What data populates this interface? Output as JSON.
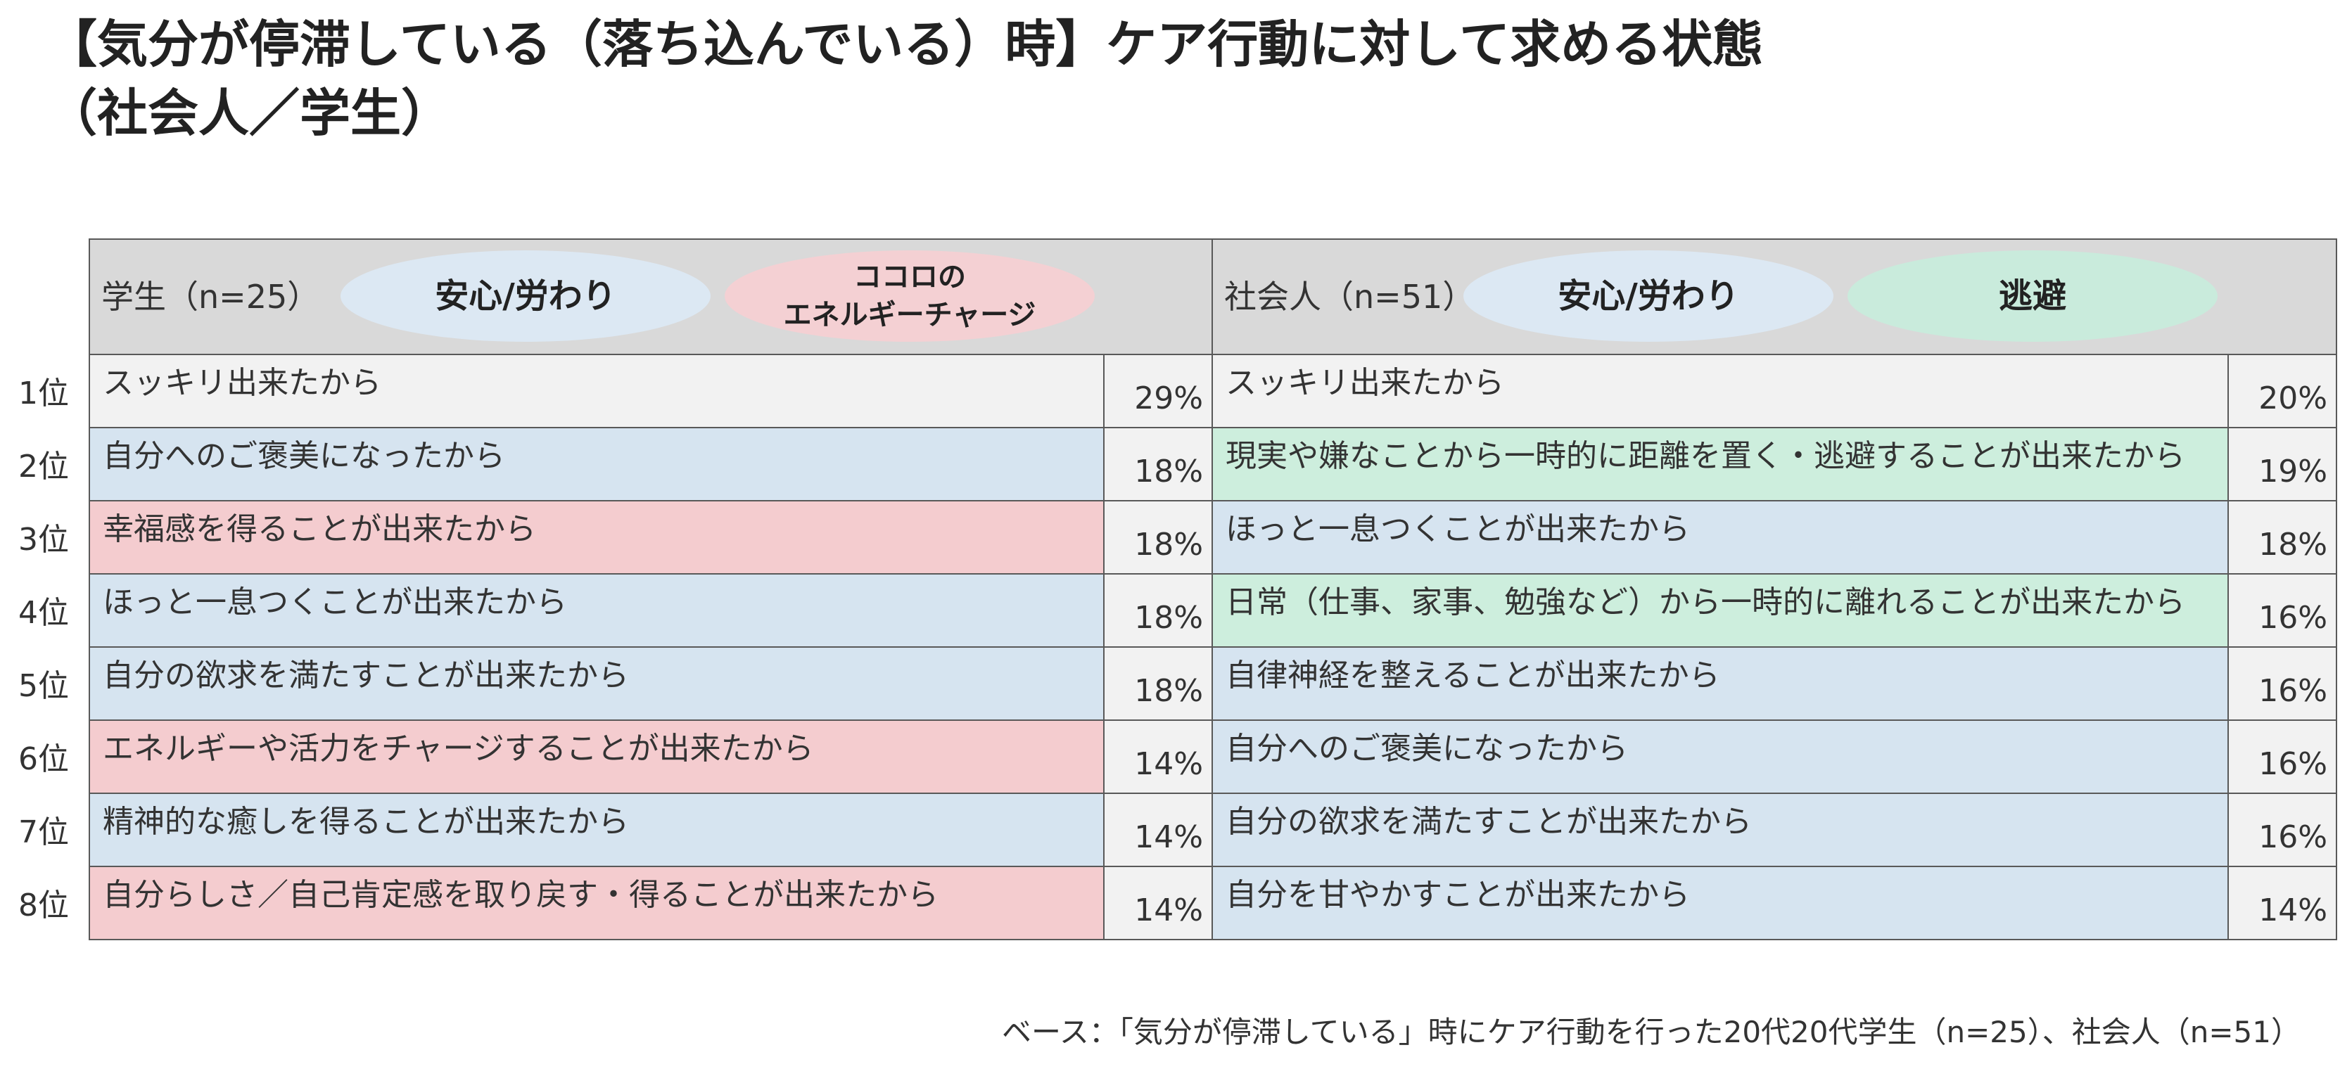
{
  "title": {
    "line1": "【気分が停滞している（落ち込んでいる）時】ケア行動に対して求める状態",
    "line2": "（社会人／学生）"
  },
  "ranks": [
    "1位",
    "2位",
    "3位",
    "4位",
    "5位",
    "6位",
    "7位",
    "8位"
  ],
  "colors": {
    "header": "#d9d9d9",
    "gray_row": "#f2f2f2",
    "blue_category": "#d6e4f0",
    "pink_category": "#f4cccf",
    "green_category": "#cdeedd",
    "border": "#595959"
  },
  "students": {
    "group_label": "学生（n=25）",
    "tags": [
      {
        "label": "安心/労わり",
        "color": "blue"
      },
      {
        "label_line1": "ココロの",
        "label_line2": "エネルギーチャージ",
        "color": "pink"
      }
    ],
    "rows": [
      {
        "text": "スッキリ出来たから",
        "pct": "29%",
        "category": "gray"
      },
      {
        "text": "自分へのご褒美になったから",
        "pct": "18%",
        "category": "blue"
      },
      {
        "text": "幸福感を得ることが出来たから",
        "pct": "18%",
        "category": "pink"
      },
      {
        "text": "ほっと一息つくことが出来たから",
        "pct": "18%",
        "category": "blue"
      },
      {
        "text": "自分の欲求を満たすことが出来たから",
        "pct": "18%",
        "category": "blue"
      },
      {
        "text": "エネルギーや活力をチャージすることが出来たから",
        "pct": "14%",
        "category": "pink"
      },
      {
        "text": "精神的な癒しを得ることが出来たから",
        "pct": "14%",
        "category": "blue"
      },
      {
        "text": "自分らしさ／自己肯定感を取り戻す・得ることが出来たから",
        "pct": "14%",
        "category": "pink"
      }
    ]
  },
  "workers": {
    "group_label": "社会人（n=51）",
    "tags": [
      {
        "label": "安心/労わり",
        "color": "blue"
      },
      {
        "label": "逃避",
        "color": "green"
      }
    ],
    "rows": [
      {
        "text": "スッキリ出来たから",
        "pct": "20%",
        "category": "gray"
      },
      {
        "text": "現実や嫌なことから一時的に距離を置く・逃避することが出来たから",
        "pct": "19%",
        "category": "green"
      },
      {
        "text": "ほっと一息つくことが出来たから",
        "pct": "18%",
        "category": "blue"
      },
      {
        "text": "日常（仕事、家事、勉強など）から一時的に離れることが出来たから",
        "pct": "16%",
        "category": "green"
      },
      {
        "text": "自律神経を整えることが出来たから",
        "pct": "16%",
        "category": "blue"
      },
      {
        "text": "自分へのご褒美になったから",
        "pct": "16%",
        "category": "blue"
      },
      {
        "text": "自分の欲求を満たすことが出来たから",
        "pct": "16%",
        "category": "blue"
      },
      {
        "text": "自分を甘やかすことが出来たから",
        "pct": "14%",
        "category": "blue"
      }
    ]
  },
  "footnote": "ベース：「気分が停滞している」時にケア行動を行った20代20代学生（n=25）、社会人（n=51）"
}
